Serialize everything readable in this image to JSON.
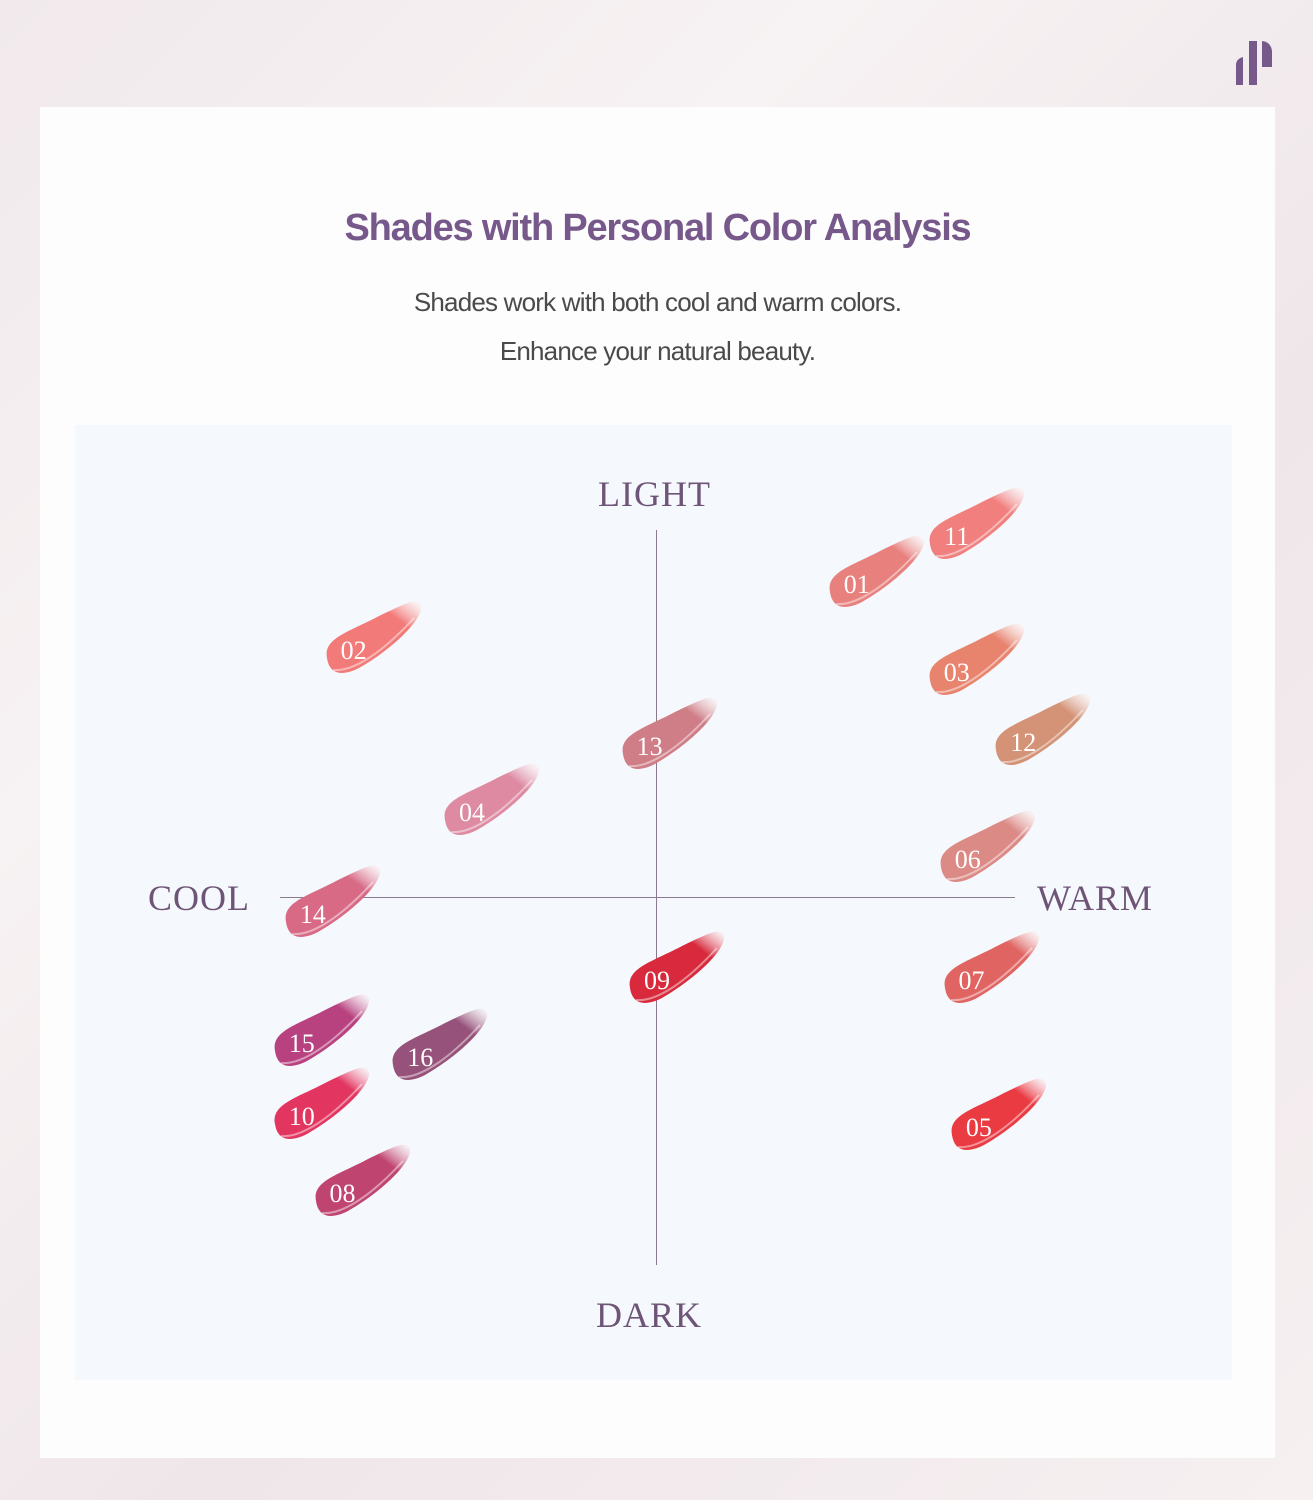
{
  "brand": {
    "logo": "brand-logo",
    "color": "#76588a"
  },
  "header": {
    "title": "Shades with Personal Color Analysis",
    "subtitle_lines": [
      "Shades work with both cool and warm colors.",
      "Enhance your natural beauty."
    ]
  },
  "chart_data": {
    "type": "scatter",
    "axes": {
      "top": "LIGHT",
      "bottom": "DARK",
      "left": "COOL",
      "right": "WARM"
    },
    "x_range": [
      -1,
      1
    ],
    "y_range": [
      -1,
      1
    ],
    "x_meaning": "cool (-1) to warm (+1)",
    "y_meaning": "dark (-1) to light (+1)",
    "shades": [
      {
        "label": "01",
        "warmth": 0.54,
        "lightness": 0.85,
        "color": "#e8807e"
      },
      {
        "label": "11",
        "warmth": 0.81,
        "lightness": 0.98,
        "color": "#f07f7e"
      },
      {
        "label": "02",
        "warmth": -0.82,
        "lightness": 0.67,
        "color": "#f27a78"
      },
      {
        "label": "03",
        "warmth": 0.81,
        "lightness": 0.61,
        "color": "#e8846e"
      },
      {
        "label": "13",
        "warmth": -0.02,
        "lightness": 0.41,
        "color": "#cf7d86"
      },
      {
        "label": "12",
        "warmth": 0.99,
        "lightness": 0.42,
        "color": "#d49276"
      },
      {
        "label": "04",
        "warmth": -0.5,
        "lightness": 0.23,
        "color": "#dd8aa2"
      },
      {
        "label": "06",
        "warmth": 0.84,
        "lightness": 0.1,
        "color": "#dc8a86"
      },
      {
        "label": "14",
        "warmth": -0.93,
        "lightness": -0.05,
        "color": "#d86a86"
      },
      {
        "label": "09",
        "warmth": 0.0,
        "lightness": -0.23,
        "color": "#d82a3c"
      },
      {
        "label": "07",
        "warmth": 0.85,
        "lightness": -0.23,
        "color": "#e06462"
      },
      {
        "label": "15",
        "warmth": -0.96,
        "lightness": -0.4,
        "color": "#b8417f"
      },
      {
        "label": "16",
        "warmth": -0.64,
        "lightness": -0.44,
        "color": "#96527a"
      },
      {
        "label": "10",
        "warmth": -0.96,
        "lightness": -0.6,
        "color": "#e2355f"
      },
      {
        "label": "05",
        "warmth": 0.87,
        "lightness": -0.63,
        "color": "#ea3a42"
      },
      {
        "label": "08",
        "warmth": -0.85,
        "lightness": -0.81,
        "color": "#c04470"
      }
    ]
  }
}
